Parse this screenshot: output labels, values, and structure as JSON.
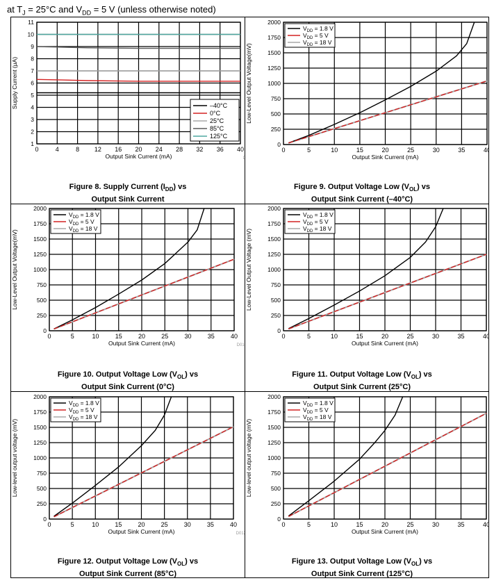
{
  "header": {
    "text_a": "at T",
    "sub_a": "J",
    "text_b": " = 25°C and V",
    "sub_b": "DD",
    "text_c": " = 5 V (unless otherwise noted)"
  },
  "colors": {
    "black": "#000000",
    "red": "#d42222",
    "gray": "#a8a8a8",
    "cyan": "#4fa8a0",
    "darkgray": "#5a5a5a"
  },
  "captions": [
    {
      "pre": "Figure 8. Supply Current (I",
      "sub": "DD",
      "post": ") vs",
      "line2": "Output Sink Current"
    },
    {
      "pre": "Figure 9. Output Voltage Low (V",
      "sub": "OL",
      "post": ") vs",
      "line2": "Output Sink Current (–40°C)"
    },
    {
      "pre": "Figure 10. Output Voltage Low (V",
      "sub": "OL",
      "post": ") vs",
      "line2": "Output Sink Current (0°C)"
    },
    {
      "pre": "Figure 11. Output Voltage Low (V",
      "sub": "OL",
      "post": ") vs",
      "line2": "Output Sink Current (25°C)"
    },
    {
      "pre": "Figure 12. Output Voltage Low (V",
      "sub": "OL",
      "post": ") vs",
      "line2": "Output Sink Current (85°C)"
    },
    {
      "pre": "Figure 13. Output Voltage Low (V",
      "sub": "OL",
      "post": ") vs",
      "line2": "Output Sink Current (125°C)"
    }
  ],
  "chart_data": [
    {
      "type": "line",
      "id": "D008",
      "xlabel": "Output Sink Current (mA)",
      "ylabel": "Supply Current (µA)",
      "xlim": [
        0,
        40
      ],
      "ylim": [
        1,
        11
      ],
      "xticks": [
        0,
        4,
        8,
        12,
        16,
        20,
        24,
        28,
        32,
        36,
        40
      ],
      "yticks": [
        1,
        2,
        3,
        4,
        5,
        6,
        7,
        8,
        9,
        10,
        11
      ],
      "grid": true,
      "legend_position": "bottom-right",
      "series": [
        {
          "name": "–40°C",
          "color": "#000000",
          "x": [
            0,
            40
          ],
          "y": [
            5.2,
            5.2
          ]
        },
        {
          "name": "0°C",
          "color": "#d42222",
          "x": [
            0,
            5,
            10,
            20,
            40
          ],
          "y": [
            6.3,
            6.25,
            6.2,
            6.15,
            6.15
          ]
        },
        {
          "name": "25°C",
          "color": "#a8a8a8",
          "x": [
            0,
            40
          ],
          "y": [
            7.0,
            7.0
          ]
        },
        {
          "name": "85°C",
          "color": "#5a5a5a",
          "x": [
            0,
            5,
            10,
            20,
            40
          ],
          "y": [
            9.0,
            8.95,
            8.9,
            8.85,
            8.85
          ]
        },
        {
          "name": "125°C",
          "color": "#4fa8a0",
          "x": [
            0,
            40
          ],
          "y": [
            10.0,
            10.0
          ]
        }
      ]
    },
    {
      "type": "line",
      "id": "D009",
      "xlabel": "Output Sink Current (mA)",
      "ylabel": "Low-Level Output Voltage(mV)",
      "xlim": [
        0,
        40
      ],
      "ylim": [
        0,
        2000
      ],
      "xticks": [
        0,
        5,
        10,
        15,
        20,
        25,
        30,
        35,
        40
      ],
      "yticks": [
        0,
        250,
        500,
        750,
        1000,
        1250,
        1500,
        1750,
        2000
      ],
      "grid": true,
      "legend_position": "top-left",
      "series": [
        {
          "name": "1.8 V",
          "color": "#000000",
          "x": [
            1,
            5,
            10,
            15,
            20,
            25,
            30,
            34,
            36,
            37.5
          ],
          "y": [
            25,
            150,
            330,
            520,
            730,
            950,
            1200,
            1450,
            1650,
            2000
          ]
        },
        {
          "name": "5 V",
          "color": "#d42222",
          "x": [
            1,
            40
          ],
          "y": [
            26,
            1040
          ]
        },
        {
          "name": "18 V",
          "color": "#a8a8a8",
          "x": [
            1,
            40
          ],
          "y": [
            26,
            1040
          ]
        }
      ]
    },
    {
      "type": "line",
      "id": "D010",
      "xlabel": "Output Sink Current (mA)",
      "ylabel": "Low-Level Output Voltage(mV)",
      "xlim": [
        0,
        40
      ],
      "ylim": [
        0,
        2000
      ],
      "xticks": [
        0,
        5,
        10,
        15,
        20,
        25,
        30,
        35,
        40
      ],
      "yticks": [
        0,
        250,
        500,
        750,
        1000,
        1250,
        1500,
        1750,
        2000
      ],
      "grid": true,
      "legend_position": "top-left",
      "series": [
        {
          "name": "1.8 V",
          "color": "#000000",
          "x": [
            1,
            5,
            10,
            15,
            20,
            25,
            30,
            32,
            33.5
          ],
          "y": [
            30,
            180,
            380,
            600,
            830,
            1100,
            1450,
            1650,
            2000
          ]
        },
        {
          "name": "5 V",
          "color": "#d42222",
          "x": [
            1,
            40
          ],
          "y": [
            29,
            1170
          ]
        },
        {
          "name": "18 V",
          "color": "#a8a8a8",
          "x": [
            1,
            40
          ],
          "y": [
            29,
            1170
          ]
        }
      ]
    },
    {
      "type": "line",
      "id": "D011",
      "xlabel": "Output Sink Current (mA)",
      "ylabel": "Low-Level Output Voltage (mV)",
      "xlim": [
        0,
        40
      ],
      "ylim": [
        0,
        2000
      ],
      "xticks": [
        0,
        5,
        10,
        15,
        20,
        25,
        30,
        35,
        40
      ],
      "yticks": [
        0,
        250,
        500,
        750,
        1000,
        1250,
        1500,
        1750,
        2000
      ],
      "grid": true,
      "legend_position": "top-left",
      "series": [
        {
          "name": "1.8 V",
          "color": "#000000",
          "x": [
            1,
            5,
            10,
            15,
            20,
            25,
            28,
            30,
            31.5
          ],
          "y": [
            35,
            200,
            420,
            650,
            900,
            1200,
            1450,
            1700,
            2000
          ]
        },
        {
          "name": "5 V",
          "color": "#d42222",
          "x": [
            1,
            40
          ],
          "y": [
            31,
            1250
          ]
        },
        {
          "name": "18 V",
          "color": "#a8a8a8",
          "x": [
            1,
            40
          ],
          "y": [
            31,
            1250
          ]
        }
      ]
    },
    {
      "type": "line",
      "id": "D012",
      "xlabel": "Output Sink Current (mA)",
      "ylabel": "Low-level output voltage (mV)",
      "xlim": [
        0,
        40
      ],
      "ylim": [
        0,
        2000
      ],
      "xticks": [
        0,
        5,
        10,
        15,
        20,
        25,
        30,
        35,
        40
      ],
      "yticks": [
        0,
        250,
        500,
        750,
        1000,
        1250,
        1500,
        1750,
        2000
      ],
      "grid": true,
      "legend_position": "top-left",
      "series": [
        {
          "name": "1.8 V",
          "color": "#000000",
          "x": [
            1,
            5,
            10,
            15,
            20,
            23,
            25,
            26.5
          ],
          "y": [
            45,
            260,
            550,
            850,
            1200,
            1450,
            1700,
            2000
          ]
        },
        {
          "name": "5 V",
          "color": "#d42222",
          "x": [
            1,
            40
          ],
          "y": [
            38,
            1510
          ]
        },
        {
          "name": "18 V",
          "color": "#a8a8a8",
          "x": [
            1,
            40
          ],
          "y": [
            38,
            1510
          ]
        }
      ]
    },
    {
      "type": "line",
      "id": "D013",
      "xlabel": "Output Sink Current (mA)",
      "ylabel": "Low-level output voltage (mV)",
      "xlim": [
        0,
        40
      ],
      "ylim": [
        0,
        2000
      ],
      "xticks": [
        0,
        5,
        10,
        15,
        20,
        25,
        30,
        35,
        40
      ],
      "yticks": [
        0,
        250,
        500,
        750,
        1000,
        1250,
        1500,
        1750,
        2000
      ],
      "grid": true,
      "legend_position": "top-left",
      "series": [
        {
          "name": "1.8 V",
          "color": "#000000",
          "x": [
            1,
            5,
            10,
            15,
            18,
            20,
            22,
            23.5
          ],
          "y": [
            50,
            300,
            620,
            980,
            1250,
            1450,
            1700,
            2000
          ]
        },
        {
          "name": "5 V",
          "color": "#d42222",
          "x": [
            1,
            40
          ],
          "y": [
            43,
            1730
          ]
        },
        {
          "name": "18 V",
          "color": "#a8a8a8",
          "x": [
            1,
            40
          ],
          "y": [
            43,
            1730
          ]
        }
      ]
    }
  ]
}
